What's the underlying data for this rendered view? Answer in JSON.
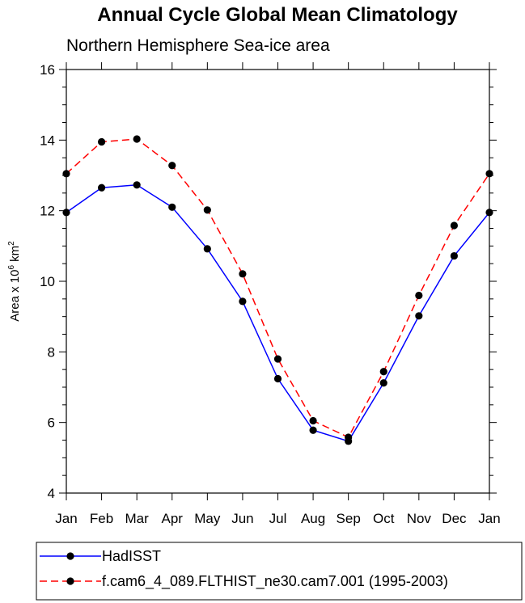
{
  "chart_data": {
    "type": "line",
    "title": "Annual Cycle Global Mean Climatology",
    "subtitle": "Northern Hemisphere Sea-ice area",
    "ylabel": {
      "prefix": "Area x 10",
      "exponent": "6",
      "unit": " km",
      "unit_exponent": "2"
    },
    "xlabel": "",
    "categories": [
      "Jan",
      "Feb",
      "Mar",
      "Apr",
      "May",
      "Jun",
      "Jul",
      "Aug",
      "Sep",
      "Oct",
      "Nov",
      "Dec",
      "Jan"
    ],
    "ylim": [
      4,
      16
    ],
    "yticks": [
      4,
      6,
      8,
      10,
      12,
      14,
      16
    ],
    "series": [
      {
        "name": "HadISST",
        "color": "#0000ff",
        "dash": "solid",
        "values": [
          11.95,
          12.65,
          12.73,
          12.1,
          10.92,
          9.43,
          7.24,
          5.78,
          5.47,
          7.12,
          9.02,
          10.72,
          11.95
        ]
      },
      {
        "name": "f.cam6_4_089.FLTHIST_ne30.cam7.001 (1995-2003)",
        "color": "#ff0000",
        "dash": "dashed",
        "values": [
          13.05,
          13.95,
          14.03,
          13.28,
          12.02,
          10.21,
          7.8,
          6.05,
          5.58,
          7.44,
          9.6,
          11.58,
          13.05
        ]
      }
    ],
    "legend": "bottom"
  }
}
